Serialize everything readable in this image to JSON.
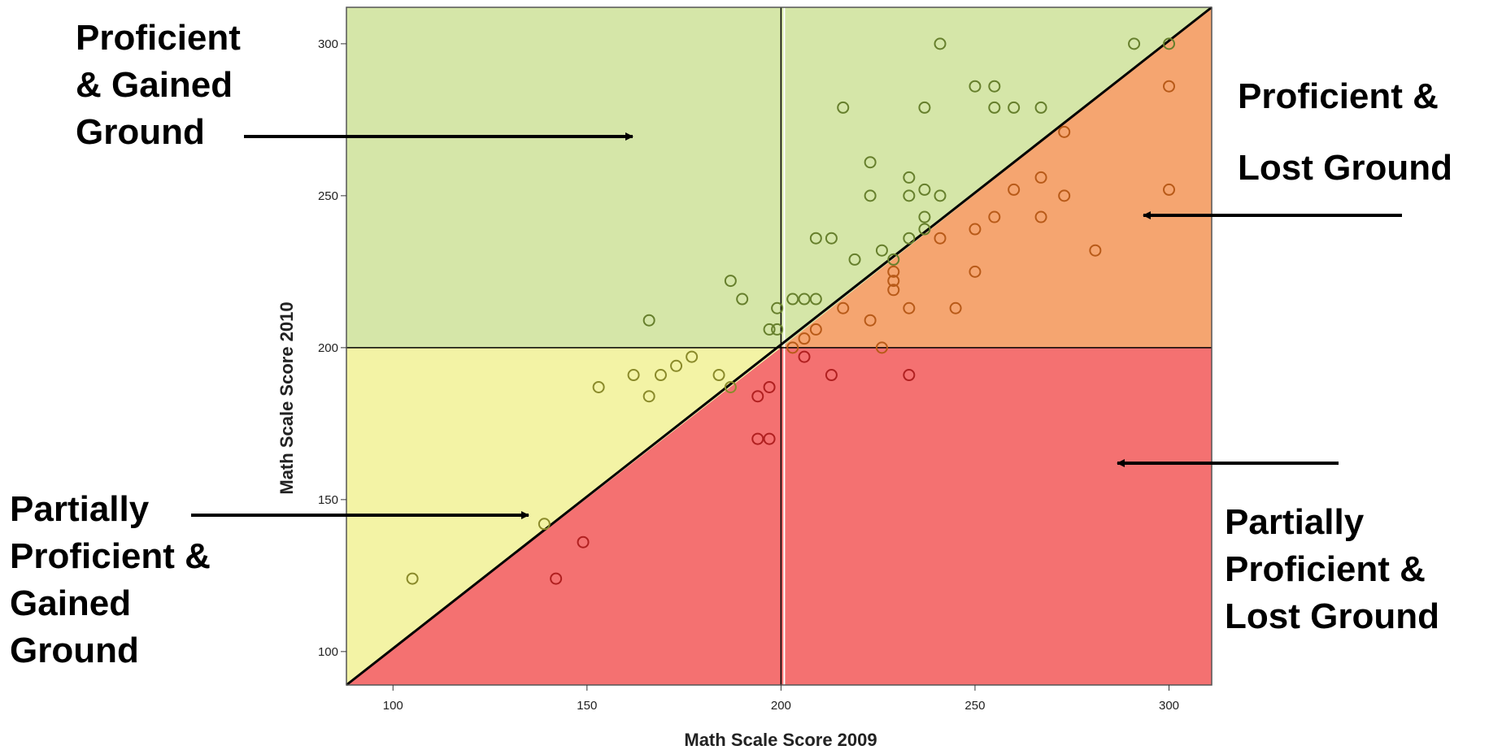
{
  "chart_data": {
    "type": "scatter",
    "xlabel": "Math Scale Score 2009",
    "ylabel": "Math Scale Score 2010",
    "xlim": [
      88,
      311
    ],
    "ylim": [
      89,
      312
    ],
    "x_ticks": [
      100,
      150,
      200,
      250,
      300
    ],
    "y_ticks": [
      100,
      150,
      200,
      250,
      300
    ],
    "proficiency_cutoff": 200,
    "grid": false,
    "regions": {
      "proficient_gained": {
        "label": "Proficient\n& Gained\nGround",
        "color": "#d5e6a8"
      },
      "proficient_lost": {
        "label": "Proficient &\n\n Lost Ground",
        "color": "#f5a570"
      },
      "partial_gained": {
        "label": "Partially\nProficient  &\nGained\nGround",
        "color": "#f3f3a5"
      },
      "partial_lost": {
        "label": "Partially\nProficient  &\nLost Ground",
        "color": "#f47171"
      }
    },
    "points": [
      [
        105,
        124
      ],
      [
        139,
        142
      ],
      [
        142,
        124
      ],
      [
        149,
        136
      ],
      [
        153,
        187
      ],
      [
        162,
        191
      ],
      [
        166,
        184
      ],
      [
        166,
        209
      ],
      [
        169,
        191
      ],
      [
        173,
        194
      ],
      [
        177,
        197
      ],
      [
        184,
        191
      ],
      [
        187,
        222
      ],
      [
        187,
        187
      ],
      [
        190,
        216
      ],
      [
        194,
        184
      ],
      [
        194,
        170
      ],
      [
        197,
        206
      ],
      [
        197,
        187
      ],
      [
        197,
        170
      ],
      [
        199,
        206
      ],
      [
        199,
        213
      ],
      [
        203,
        216
      ],
      [
        203,
        200
      ],
      [
        206,
        216
      ],
      [
        206,
        203
      ],
      [
        206,
        197
      ],
      [
        209,
        216
      ],
      [
        209,
        236
      ],
      [
        209,
        206
      ],
      [
        213,
        236
      ],
      [
        213,
        191
      ],
      [
        216,
        279
      ],
      [
        216,
        213
      ],
      [
        219,
        229
      ],
      [
        223,
        261
      ],
      [
        223,
        250
      ],
      [
        223,
        209
      ],
      [
        226,
        232
      ],
      [
        226,
        200
      ],
      [
        229,
        229
      ],
      [
        229,
        225
      ],
      [
        229,
        222
      ],
      [
        229,
        219
      ],
      [
        233,
        256
      ],
      [
        233,
        250
      ],
      [
        233,
        236
      ],
      [
        233,
        213
      ],
      [
        233,
        191
      ],
      [
        237,
        279
      ],
      [
        237,
        252
      ],
      [
        237,
        243
      ],
      [
        237,
        239
      ],
      [
        241,
        300
      ],
      [
        241,
        250
      ],
      [
        241,
        236
      ],
      [
        245,
        213
      ],
      [
        250,
        286
      ],
      [
        250,
        239
      ],
      [
        250,
        225
      ],
      [
        255,
        286
      ],
      [
        255,
        279
      ],
      [
        255,
        243
      ],
      [
        260,
        279
      ],
      [
        260,
        252
      ],
      [
        267,
        279
      ],
      [
        267,
        256
      ],
      [
        267,
        243
      ],
      [
        273,
        271
      ],
      [
        273,
        250
      ],
      [
        281,
        232
      ],
      [
        291,
        300
      ],
      [
        300,
        300
      ],
      [
        300,
        286
      ],
      [
        300,
        252
      ]
    ]
  }
}
